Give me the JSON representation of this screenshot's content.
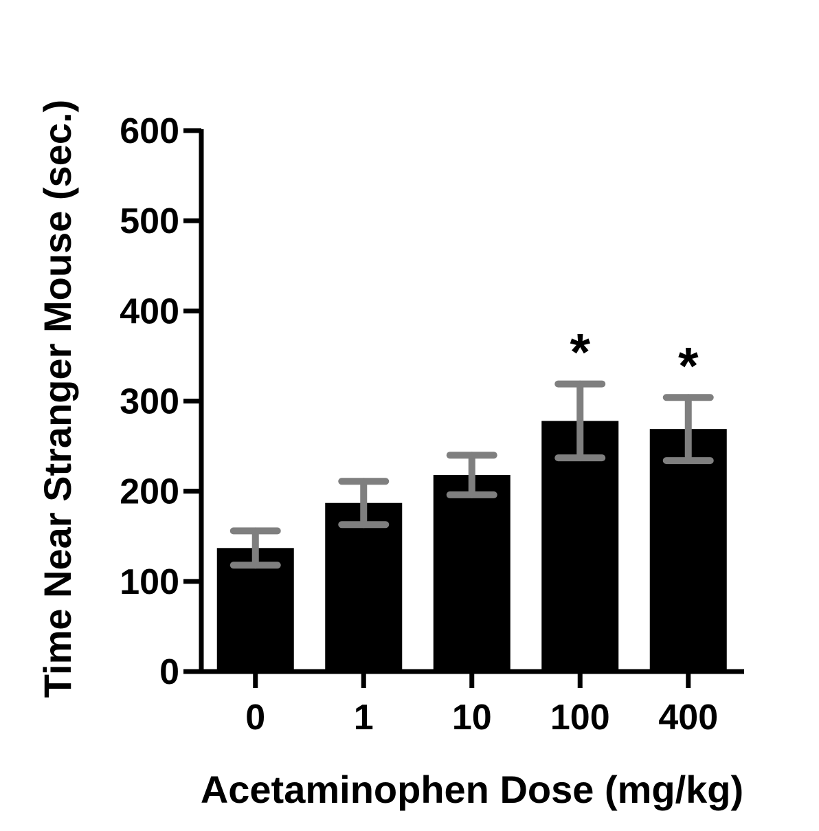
{
  "chart_data": {
    "type": "bar",
    "categories": [
      "0",
      "1",
      "10",
      "100",
      "400"
    ],
    "values": [
      137,
      187,
      218,
      278,
      269
    ],
    "errors": [
      19,
      24,
      22,
      41,
      35
    ],
    "significance": [
      "",
      "",
      "",
      "*",
      "*"
    ],
    "title": "",
    "xlabel": "Acetaminophen Dose (mg/kg)",
    "ylabel": "Time Near Stranger Mouse (sec.)",
    "ylim": [
      0,
      600
    ],
    "yticks": [
      0,
      100,
      200,
      300,
      400,
      500,
      600
    ],
    "ytick_labels": [
      "0",
      "100",
      "200",
      "300",
      "400",
      "500",
      "600"
    ],
    "grid": false,
    "legend": "none",
    "colors": {
      "bar": "#000000",
      "error_bar": "#7f7f7f",
      "axis": "#000000"
    }
  }
}
